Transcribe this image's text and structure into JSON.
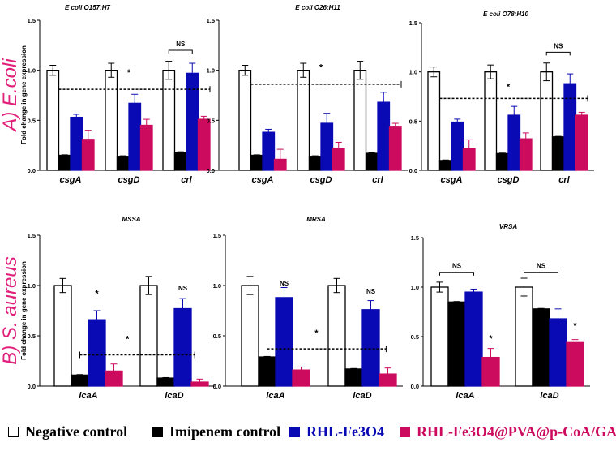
{
  "section_labels": [
    {
      "text": "A) E.coli",
      "color": "#e0207a"
    },
    {
      "text": "B) S. aureus",
      "color": "#e0207a"
    }
  ],
  "ylabel": "Fold change in gene expression",
  "legend": [
    {
      "label": "Negative control",
      "color": "#ffffff",
      "text_color": "#000000"
    },
    {
      "label": "Imipenem control",
      "color": "#000000",
      "text_color": "#000000"
    },
    {
      "label": "RHL-Fe3O4",
      "color": "#0a0ab4",
      "text_color": "#0a0ab4"
    },
    {
      "label": "RHL-Fe3O4@PVA@p-CoA/GA",
      "color": "#cc0a5e",
      "text_color": "#cc0a5e"
    }
  ],
  "chart_data": [
    {
      "type": "bar",
      "title": "E coli  O157:H7",
      "ylim": [
        0,
        1.5
      ],
      "yticks": [
        "0.0",
        "0.5",
        "1.0",
        "1.5"
      ],
      "categories": [
        "csgA",
        "csgD",
        "crl"
      ],
      "series": [
        {
          "name": "Negative control",
          "values": [
            1.0,
            1.0,
            1.0
          ],
          "errors": [
            0.05,
            0.07,
            0.09
          ]
        },
        {
          "name": "Imipenem control",
          "values": [
            0.15,
            0.14,
            0.18
          ],
          "errors": [
            0.005,
            0.005,
            0.005
          ]
        },
        {
          "name": "RHL-Fe3O4",
          "values": [
            0.53,
            0.67,
            0.97
          ],
          "errors": [
            0.03,
            0.09,
            0.1
          ]
        },
        {
          "name": "RHL-Fe3O4@PVA@p-CoA/GA",
          "values": [
            0.31,
            0.45,
            0.51
          ],
          "errors": [
            0.09,
            0.06,
            0.03
          ]
        }
      ],
      "annotations": [
        {
          "type": "dashed",
          "y": 0.81,
          "from": [
            0,
            1
          ],
          "to": [
            2,
            4
          ]
        },
        {
          "type": "text",
          "text": "*",
          "y": 0.95,
          "group": 1,
          "bar": 2
        },
        {
          "type": "bracket",
          "text": "NS",
          "y": 1.2,
          "group": 2,
          "from": 0.5,
          "to": 2.5
        }
      ]
    },
    {
      "type": "bar",
      "title": "E coli  O26:H11",
      "ylim": [
        0,
        1.5
      ],
      "yticks": [
        "0.0",
        "0.5",
        "1.0",
        "1.5"
      ],
      "categories": [
        "csgA",
        "csgD",
        "crl"
      ],
      "series": [
        {
          "name": "Negative control",
          "values": [
            1.0,
            1.0,
            1.0
          ],
          "errors": [
            0.05,
            0.07,
            0.09
          ]
        },
        {
          "name": "Imipenem control",
          "values": [
            0.15,
            0.14,
            0.17
          ],
          "errors": [
            0.005,
            0.005,
            0.005
          ]
        },
        {
          "name": "RHL-Fe3O4",
          "values": [
            0.38,
            0.47,
            0.68
          ],
          "errors": [
            0.03,
            0.1,
            0.1
          ]
        },
        {
          "name": "RHL-Fe3O4@PVA@p-CoA/GA",
          "values": [
            0.11,
            0.22,
            0.44
          ],
          "errors": [
            0.1,
            0.06,
            0.03
          ]
        }
      ],
      "annotations": [
        {
          "type": "dashed",
          "y": 0.86,
          "from": [
            0,
            1
          ],
          "to": [
            2,
            4
          ]
        },
        {
          "type": "text",
          "text": "*",
          "y": 1.0,
          "group": 1,
          "bar": 2
        }
      ]
    },
    {
      "type": "bar",
      "title": "E coli  O78:H10",
      "ylim": [
        0,
        1.5
      ],
      "yticks": [
        "0.0",
        "0.5",
        "1.0",
        "1.5"
      ],
      "categories": [
        "csgA",
        "csgD",
        "crl"
      ],
      "series": [
        {
          "name": "Negative control",
          "values": [
            1.0,
            1.0,
            1.0
          ],
          "errors": [
            0.05,
            0.07,
            0.09
          ]
        },
        {
          "name": "Imipenem control",
          "values": [
            0.1,
            0.17,
            0.34
          ],
          "errors": [
            0.005,
            0.005,
            0.005
          ]
        },
        {
          "name": "RHL-Fe3O4",
          "values": [
            0.49,
            0.56,
            0.88
          ],
          "errors": [
            0.03,
            0.09,
            0.1
          ]
        },
        {
          "name": "RHL-Fe3O4@PVA@p-CoA/GA",
          "values": [
            0.22,
            0.32,
            0.56
          ],
          "errors": [
            0.09,
            0.06,
            0.03
          ]
        }
      ],
      "annotations": [
        {
          "type": "dashed",
          "y": 0.73,
          "from": [
            0,
            1
          ],
          "to": [
            2,
            4
          ]
        },
        {
          "type": "text",
          "text": "*",
          "y": 0.82,
          "group": 1,
          "bar": 2
        },
        {
          "type": "bracket",
          "text": "NS",
          "y": 1.2,
          "group": 2,
          "from": 0.5,
          "to": 2.5
        }
      ]
    },
    {
      "type": "bar",
      "title": "MSSA",
      "ylim": [
        0,
        1.5
      ],
      "yticks": [
        "0.0",
        "0.5",
        "1.0",
        "1.5"
      ],
      "categories": [
        "icaA",
        "icaD"
      ],
      "series": [
        {
          "name": "Negative control",
          "values": [
            1.0,
            1.0
          ],
          "errors": [
            0.07,
            0.09
          ]
        },
        {
          "name": "Imipenem control",
          "values": [
            0.11,
            0.08
          ],
          "errors": [
            0.005,
            0.005
          ]
        },
        {
          "name": "RHL-Fe3O4",
          "values": [
            0.66,
            0.77
          ],
          "errors": [
            0.09,
            0.1
          ]
        },
        {
          "name": "RHL-Fe3O4@PVA@p-CoA/GA",
          "values": [
            0.15,
            0.04
          ],
          "errors": [
            0.07,
            0.03
          ]
        }
      ],
      "annotations": [
        {
          "type": "text",
          "text": "*",
          "y": 0.89,
          "group": 0,
          "bar": 2.5
        },
        {
          "type": "text",
          "text": "NS",
          "y": 0.95,
          "group": 1,
          "bar": 2.5
        },
        {
          "type": "dashed",
          "y": 0.31,
          "from": [
            0,
            1.5
          ],
          "to": [
            1,
            3.2
          ]
        },
        {
          "type": "text",
          "text": "*",
          "y": 0.44,
          "group": 0,
          "bar": 4.3
        }
      ]
    },
    {
      "type": "bar",
      "title": "MRSA",
      "ylim": [
        0,
        1.5
      ],
      "yticks": [
        "0.0",
        "0.5",
        "1.0",
        "1.5"
      ],
      "categories": [
        "icaA",
        "icaD"
      ],
      "series": [
        {
          "name": "Negative control",
          "values": [
            1.0,
            1.0
          ],
          "errors": [
            0.09,
            0.07
          ]
        },
        {
          "name": "Imipenem control",
          "values": [
            0.29,
            0.17
          ],
          "errors": [
            0.005,
            0.005
          ]
        },
        {
          "name": "RHL-Fe3O4",
          "values": [
            0.88,
            0.76
          ],
          "errors": [
            0.1,
            0.09
          ]
        },
        {
          "name": "RHL-Fe3O4@PVA@p-CoA/GA",
          "values": [
            0.16,
            0.12
          ],
          "errors": [
            0.03,
            0.06
          ]
        }
      ],
      "annotations": [
        {
          "type": "text",
          "text": "NS",
          "y": 1.0,
          "group": 0,
          "bar": 2.5
        },
        {
          "type": "text",
          "text": "NS",
          "y": 0.92,
          "group": 1,
          "bar": 2.5
        },
        {
          "type": "dashed",
          "y": 0.37,
          "from": [
            0,
            1.5
          ],
          "to": [
            1,
            3.4
          ]
        },
        {
          "type": "text",
          "text": "*",
          "y": 0.5,
          "group": 0,
          "bar": 4.4
        }
      ]
    },
    {
      "type": "bar",
      "title": "VRSA",
      "ylim": [
        0,
        1.5
      ],
      "yticks": [
        "0.0",
        "0.5",
        "1.0",
        "1.5"
      ],
      "categories": [
        "icaA",
        "icaD"
      ],
      "series": [
        {
          "name": "Negative control",
          "values": [
            1.0,
            1.0
          ],
          "errors": [
            0.05,
            0.09
          ]
        },
        {
          "name": "Imipenem control",
          "values": [
            0.85,
            0.78
          ],
          "errors": [
            0.005,
            0.005
          ]
        },
        {
          "name": "RHL-Fe3O4",
          "values": [
            0.95,
            0.68
          ],
          "errors": [
            0.03,
            0.1
          ]
        },
        {
          "name": "RHL-Fe3O4@PVA@p-CoA/GA",
          "values": [
            0.29,
            0.44
          ],
          "errors": [
            0.09,
            0.03
          ]
        }
      ],
      "annotations": [
        {
          "type": "bracket",
          "text": "NS",
          "y": 1.15,
          "group": 0,
          "from": 0.5,
          "to": 2.5
        },
        {
          "type": "bracket",
          "text": "NS",
          "y": 1.15,
          "group": 1,
          "from": 0.5,
          "to": 2.5
        },
        {
          "type": "text",
          "text": "*",
          "y": 0.45,
          "group": 0,
          "bar": 3.5
        },
        {
          "type": "text",
          "text": "*",
          "y": 0.58,
          "group": 1,
          "bar": 3.5
        }
      ]
    }
  ]
}
